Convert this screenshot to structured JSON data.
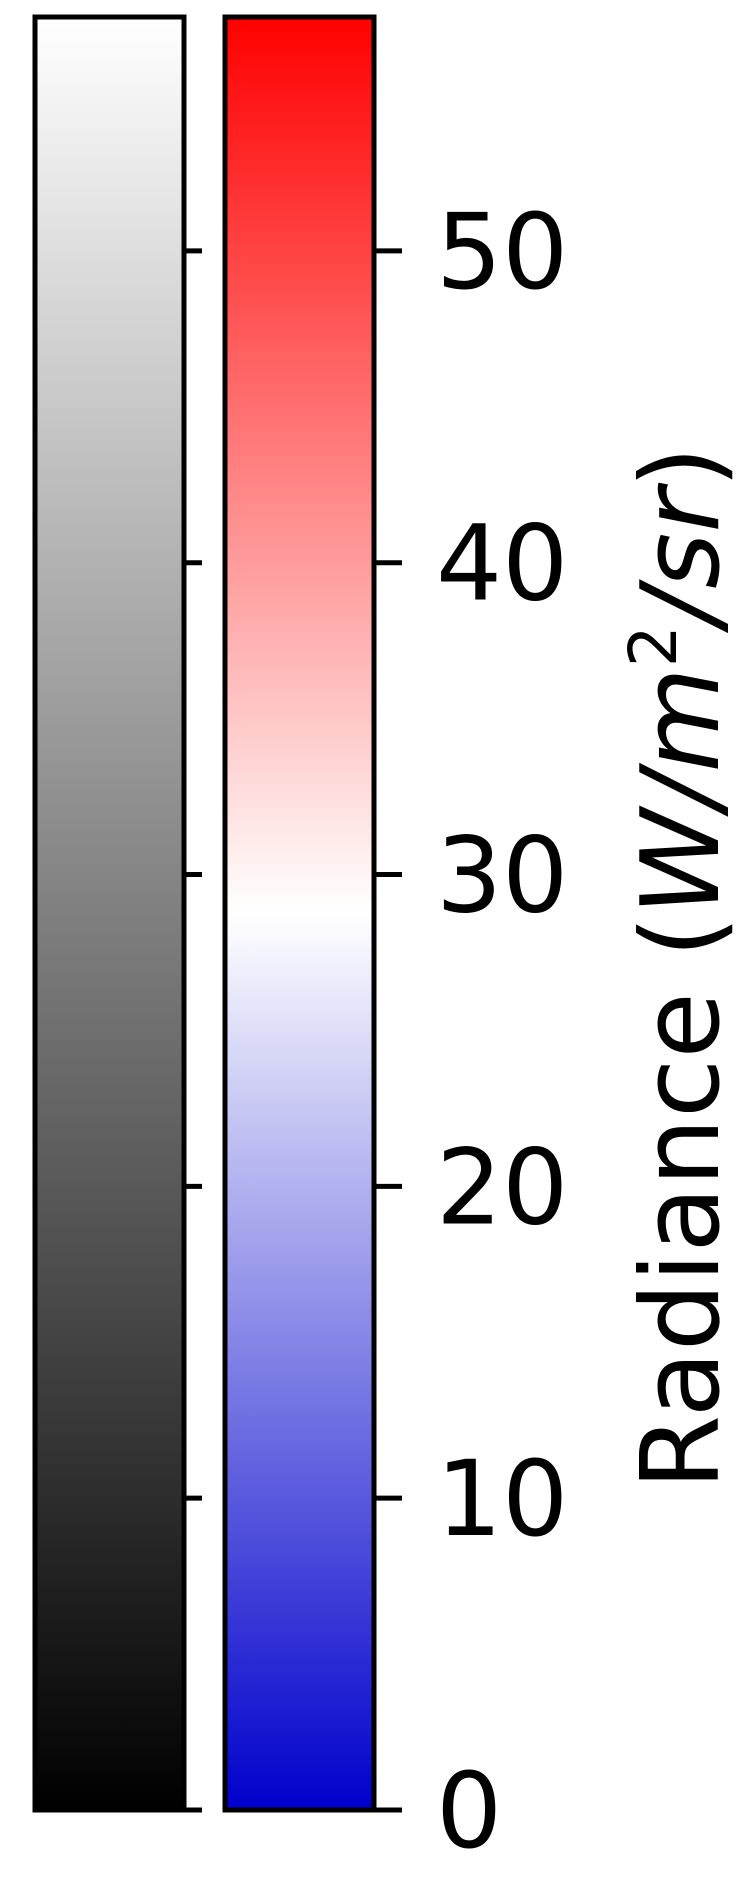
{
  "chart_data": {
    "type": "colorbar",
    "title": "",
    "bars": [
      {
        "name": "",
        "colormap": "grayscale",
        "stops": [
          "#000000",
          "#ffffff"
        ],
        "ticks_labeled": false
      },
      {
        "name": "",
        "colormap": "bwr",
        "stops": [
          "#0000cc",
          "#ffffff",
          "#ff0000"
        ],
        "ticks_labeled": true
      }
    ],
    "vlim": [
      0,
      57.5
    ],
    "ticks": [
      0,
      10,
      20,
      30,
      40,
      50
    ],
    "tick_labels": [
      "0",
      "10",
      "20",
      "30",
      "40",
      "50"
    ],
    "ylabel": {
      "main": "Radiance (",
      "unit_w": "W",
      "slash1": "/",
      "unit_m": "m",
      "exponent": "2",
      "slash2": "/",
      "unit_sr": "sr",
      "close": ")"
    }
  }
}
